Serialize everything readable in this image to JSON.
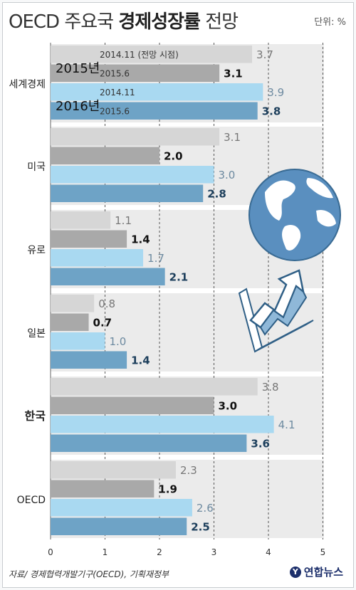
{
  "title": {
    "prefix": "OECD 주요국 ",
    "bold": "경제성장률",
    "suffix": " 전망"
  },
  "unit": "단위: %",
  "source": "자료/ 경제협력개발기구(OECD), 기획재정부",
  "logo": {
    "mark": "Y",
    "text": "연합뉴스"
  },
  "colors": {
    "bar_2015_11": "#d6d6d6",
    "bar_2015_6": "#a9a9a9",
    "bar_2016_11": "#a9d9f1",
    "bar_2016_6": "#6ea3c6",
    "label_gray": "#777777",
    "label_dark": "#111111",
    "label_blue": "#6d8aa0",
    "label_navy": "#1d3f5c",
    "group_bg": "#ebebeb"
  },
  "chart_data": {
    "type": "bar",
    "orientation": "horizontal",
    "categories": [
      "세계경제",
      "미국",
      "유로",
      "일본",
      "한국",
      "OECD"
    ],
    "highlight_category": "한국",
    "series": [
      {
        "year": "2015년",
        "name": "2014.11 (전망 시점)",
        "values": [
          3.7,
          3.1,
          1.1,
          0.8,
          3.8,
          2.3
        ]
      },
      {
        "year": "2015년",
        "name": "2015.6",
        "values": [
          3.1,
          2.0,
          1.4,
          0.7,
          3.0,
          1.9
        ]
      },
      {
        "year": "2016년",
        "name": "2014.11",
        "values": [
          3.9,
          3.0,
          1.7,
          1.0,
          4.1,
          2.6
        ]
      },
      {
        "year": "2016년",
        "name": "2015.6",
        "values": [
          3.8,
          2.8,
          2.1,
          1.4,
          3.6,
          2.5
        ]
      }
    ],
    "xlim": [
      0,
      5
    ],
    "xticks": [
      "0",
      "1",
      "2",
      "3",
      "4",
      "5"
    ],
    "grid": true
  }
}
